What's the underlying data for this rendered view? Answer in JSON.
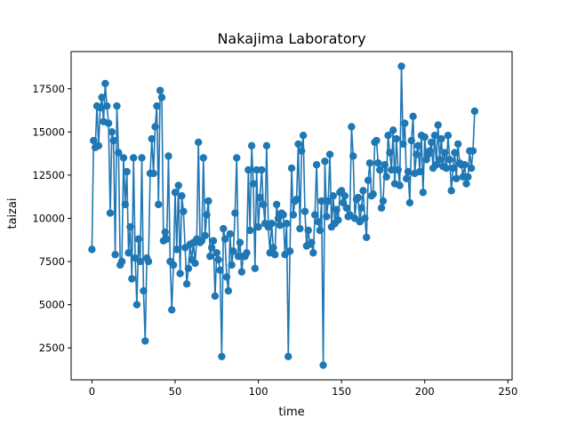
{
  "chart_data": {
    "type": "line",
    "title": "Nakajima Laboratory",
    "xlabel": "time",
    "ylabel": "taizai",
    "xlim": [
      -12.5,
      252.5
    ],
    "ylim": [
      650,
      19650
    ],
    "xticks": [
      0,
      50,
      100,
      150,
      200,
      250
    ],
    "yticks": [
      2500,
      5000,
      7500,
      10000,
      12500,
      15000,
      17500
    ],
    "xtick_labels": [
      "0",
      "50",
      "100",
      "150",
      "200",
      "250"
    ],
    "ytick_labels": [
      "2500",
      "5000",
      "7500",
      "10000",
      "12500",
      "15000",
      "17500"
    ],
    "grid": false,
    "series": [
      {
        "color": "#1f77b4",
        "marker": "circle",
        "values": [
          8200,
          14500,
          14100,
          16500,
          14200,
          16400,
          17000,
          15600,
          17800,
          16500,
          15500,
          10300,
          15000,
          14500,
          7900,
          16500,
          13800,
          7300,
          7500,
          13500,
          10800,
          12700,
          8000,
          9500,
          6500,
          13500,
          7700,
          5000,
          8800,
          7500,
          13500,
          5800,
          2900,
          7700,
          7500,
          12600,
          14600,
          12600,
          15300,
          16500,
          10800,
          17400,
          17000,
          8700,
          9200,
          8800,
          13600,
          7500,
          4700,
          7300,
          11500,
          8200,
          11900,
          6800,
          11300,
          10400,
          8300,
          6200,
          7100,
          8500,
          7600,
          8600,
          7400,
          8800,
          14400,
          8600,
          8700,
          13500,
          9000,
          10200,
          11000,
          7800,
          8300,
          8700,
          5500,
          8000,
          7600,
          7000,
          2000,
          9400,
          8800,
          6600,
          5800,
          9100,
          7300,
          8100,
          10300,
          13500,
          7800,
          8600,
          6900,
          7800,
          7800,
          8000,
          12800,
          9300,
          14200,
          12000,
          7100,
          12800,
          9500,
          11200,
          12800,
          10800,
          9700,
          14200,
          9500,
          8000,
          9700,
          8300,
          7900,
          10800,
          10000,
          9600,
          10300,
          10200,
          7900,
          9700,
          2000,
          8100,
          12900,
          10200,
          11000,
          11100,
          14300,
          9400,
          13900,
          14800,
          10400,
          8400,
          9300,
          8500,
          8600,
          8000,
          10200,
          13100,
          9800,
          9300,
          11000,
          1500,
          13300,
          10100,
          11000,
          13700,
          9500,
          11300,
          9700,
          10500,
          9900,
          11500,
          11600,
          10900,
          11300,
          10600,
          10100,
          10200,
          15300,
          13600,
          10000,
          11100,
          11200,
          9800,
          10600,
          11600,
          10000,
          8900,
          12200,
          13200,
          11300,
          11400,
          14400,
          14500,
          13200,
          12800,
          10600,
          11000,
          13100,
          12400,
          14800,
          13800,
          12800,
          15100,
          12000,
          14600,
          12800,
          11900,
          18800,
          14300,
          15500,
          12300,
          12700,
          10900,
          14500,
          15900,
          12600,
          13700,
          14200,
          12700,
          14800,
          11500,
          14700,
          13400,
          13700,
          13900,
          14400,
          12900,
          14800,
          13100,
          15400,
          13400,
          14600,
          13000,
          13800,
          12900,
          14800,
          13400,
          11600,
          12900,
          13800,
          12300,
          14300,
          13200,
          13100,
          12400,
          13100,
          12000,
          12400,
          13900,
          12900,
          13900,
          16200
        ]
      }
    ]
  }
}
